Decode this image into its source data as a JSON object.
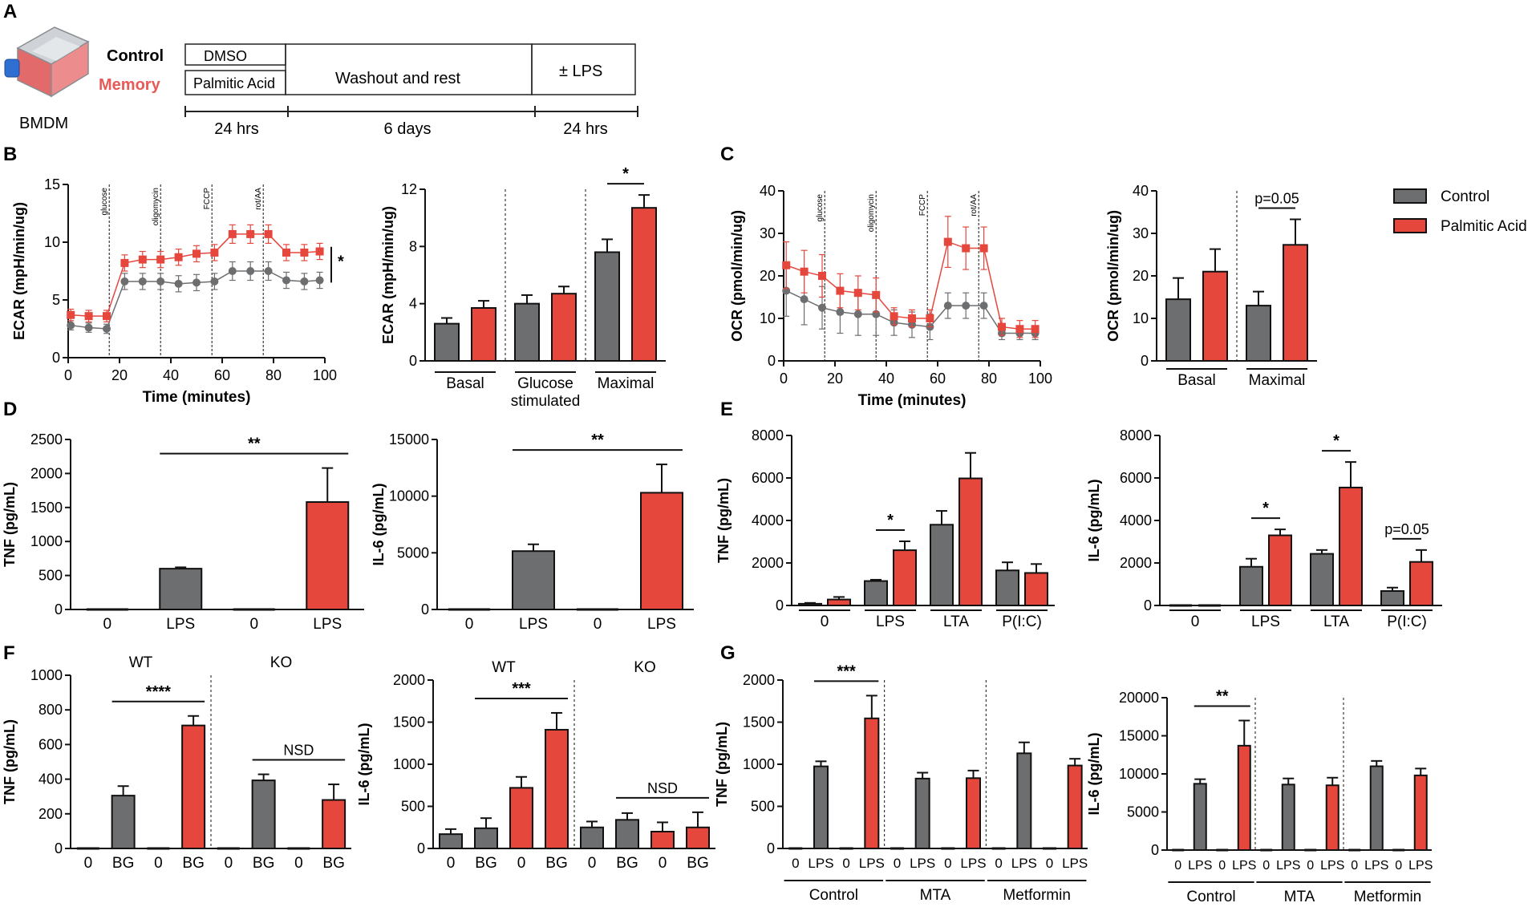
{
  "panel_labels": {
    "A": "A",
    "B": "B",
    "C": "C",
    "D": "D",
    "E": "E",
    "F": "F",
    "G": "G"
  },
  "colors": {
    "control": "#6d6e70",
    "palmitic": "#e5473d",
    "axis": "#111111"
  },
  "legend": {
    "control": "Control",
    "palmitic": "Palmitic Acid"
  },
  "schematic": {
    "cell_label": "BMDM",
    "group_control": "Control",
    "group_memory": "Memory",
    "box_dmso": "DMSO",
    "box_palmitic": "Palmitic Acid",
    "box_washout": "Washout and rest",
    "box_lps": "± LPS",
    "time_1": "24 hrs",
    "time_2": "6 days",
    "time_3": "24 hrs"
  },
  "chart_data": [
    {
      "id": "B1",
      "type": "line",
      "title": "",
      "xlabel": "Time (minutes)",
      "ylabel": "ECAR (mpH/min/ug)",
      "xlim": [
        0,
        100
      ],
      "ylim": [
        0,
        15
      ],
      "xticks": [
        0,
        20,
        40,
        60,
        80,
        100
      ],
      "yticks": [
        0,
        5,
        10,
        15
      ],
      "x": [
        1,
        8,
        15,
        22,
        29,
        36,
        43,
        50,
        57,
        64,
        71,
        78,
        85,
        92,
        98
      ],
      "injections": [
        {
          "x": 16,
          "label": "glucose"
        },
        {
          "x": 36,
          "label": "oligomycin"
        },
        {
          "x": 56,
          "label": "FCCP"
        },
        {
          "x": 76,
          "label": "rot/AA"
        }
      ],
      "series": [
        {
          "name": "Control",
          "values": [
            2.8,
            2.6,
            2.5,
            6.6,
            6.6,
            6.6,
            6.4,
            6.5,
            6.6,
            7.5,
            7.5,
            7.5,
            6.7,
            6.6,
            6.7
          ],
          "err": [
            0.4,
            0.4,
            0.4,
            0.7,
            0.7,
            0.7,
            0.7,
            0.7,
            0.7,
            0.8,
            0.8,
            0.8,
            0.7,
            0.7,
            0.7
          ]
        },
        {
          "name": "Palmitic Acid",
          "values": [
            3.7,
            3.6,
            3.6,
            8.2,
            8.5,
            8.5,
            8.7,
            9.0,
            9.1,
            10.7,
            10.7,
            10.7,
            9.1,
            9.1,
            9.2
          ],
          "err": [
            0.5,
            0.5,
            0.5,
            0.7,
            0.7,
            0.7,
            0.7,
            0.7,
            0.7,
            0.8,
            0.8,
            0.8,
            0.7,
            0.7,
            0.7
          ]
        }
      ],
      "significance": "*"
    },
    {
      "id": "B2",
      "type": "bar",
      "ylabel": "ECAR (mpH/min/ug)",
      "ylim": [
        0,
        12
      ],
      "yticks": [
        0,
        4,
        8,
        12
      ],
      "groups": [
        "Basal",
        "Glucose stimulated",
        "Maximal"
      ],
      "group_label_lines": [
        [
          "Basal"
        ],
        [
          "Glucose",
          "stimulated"
        ],
        [
          "Maximal"
        ]
      ],
      "series": [
        {
          "name": "Control",
          "values": [
            2.6,
            4.0,
            7.6
          ],
          "err": [
            0.4,
            0.6,
            0.9
          ]
        },
        {
          "name": "Palmitic Acid",
          "values": [
            3.7,
            4.7,
            10.7
          ],
          "err": [
            0.5,
            0.5,
            0.9
          ]
        }
      ],
      "significance": [
        {
          "group": 2,
          "label": "*"
        }
      ]
    },
    {
      "id": "C1",
      "type": "line",
      "title": "",
      "xlabel": "Time (minutes)",
      "ylabel": "OCR (pmol/min/ug)",
      "xlim": [
        0,
        100
      ],
      "ylim": [
        0,
        40
      ],
      "xticks": [
        0,
        20,
        40,
        60,
        80,
        100
      ],
      "yticks": [
        0,
        10,
        20,
        30,
        40
      ],
      "x": [
        1,
        8,
        15,
        22,
        29,
        36,
        43,
        50,
        57,
        64,
        71,
        78,
        85,
        92,
        98
      ],
      "injections": [
        {
          "x": 16,
          "label": "glucose"
        },
        {
          "x": 36,
          "label": "oligomycin"
        },
        {
          "x": 56,
          "label": "FCCP"
        },
        {
          "x": 76,
          "label": "rot/AA"
        }
      ],
      "series": [
        {
          "name": "Control",
          "values": [
            16.5,
            14.5,
            12.5,
            11.5,
            11.0,
            11.0,
            9.0,
            8.5,
            8.0,
            13.0,
            13.0,
            13.0,
            6.5,
            6.5,
            6.5
          ],
          "err": [
            6,
            6,
            5,
            5,
            5,
            5,
            3,
            3,
            3,
            3,
            3,
            3,
            1.5,
            1.5,
            1.5
          ]
        },
        {
          "name": "Palmitic Acid",
          "values": [
            22.5,
            21.0,
            20.0,
            16.5,
            16.0,
            15.5,
            10.5,
            10.0,
            10.0,
            28.0,
            26.5,
            26.5,
            8.0,
            7.5,
            7.5
          ],
          "err": [
            5.5,
            5,
            5,
            4,
            4,
            4,
            2,
            2,
            2,
            6,
            5,
            5,
            2,
            2,
            2
          ]
        }
      ]
    },
    {
      "id": "C2",
      "type": "bar",
      "ylabel": "OCR (pmol/min/ug)",
      "ylim": [
        0,
        40
      ],
      "yticks": [
        0,
        10,
        20,
        30,
        40
      ],
      "groups": [
        "Basal",
        "Maximal"
      ],
      "group_label_lines": [
        [
          "Basal"
        ],
        [
          "Maximal"
        ]
      ],
      "series": [
        {
          "name": "Control",
          "values": [
            14.5,
            13.0
          ],
          "err": [
            5.0,
            3.3
          ]
        },
        {
          "name": "Palmitic Acid",
          "values": [
            21.0,
            27.3
          ],
          "err": [
            5.3,
            6.0
          ]
        }
      ],
      "significance": [
        {
          "group": 1,
          "label": "p=0.05"
        }
      ]
    },
    {
      "id": "D1",
      "type": "bar",
      "ylabel": "TNF (pg/mL)",
      "ylim": [
        0,
        2500
      ],
      "yticks": [
        0,
        500,
        1000,
        1500,
        2000,
        2500
      ],
      "categories": [
        "0",
        "LPS",
        "0",
        "LPS"
      ],
      "bar_series": [
        "Control",
        "Control",
        "Palmitic Acid",
        "Palmitic Acid"
      ],
      "values": [
        0,
        600,
        0,
        1580
      ],
      "err": [
        0,
        20,
        0,
        500
      ],
      "significance": [
        {
          "from": 1,
          "to": 3,
          "label": "**"
        }
      ]
    },
    {
      "id": "D2",
      "type": "bar",
      "ylabel": "IL-6 (pg/mL)",
      "ylim": [
        0,
        15000
      ],
      "yticks": [
        0,
        5000,
        10000,
        15000
      ],
      "categories": [
        "0",
        "LPS",
        "0",
        "LPS"
      ],
      "bar_series": [
        "Control",
        "Control",
        "Palmitic Acid",
        "Palmitic Acid"
      ],
      "values": [
        0,
        5150,
        0,
        10300
      ],
      "err": [
        0,
        600,
        0,
        2500
      ],
      "significance": [
        {
          "from": 1,
          "to": 3,
          "label": "**"
        }
      ]
    },
    {
      "id": "E1",
      "type": "bar",
      "ylabel": "TNF (pg/mL)",
      "ylim": [
        0,
        8000
      ],
      "yticks": [
        0,
        2000,
        4000,
        6000,
        8000
      ],
      "groups": [
        "0",
        "LPS",
        "LTA",
        "P(I:C)"
      ],
      "series": [
        {
          "name": "Control",
          "values": [
            80,
            1150,
            3800,
            1650
          ],
          "err": [
            40,
            60,
            650,
            380
          ]
        },
        {
          "name": "Palmitic Acid",
          "values": [
            280,
            2600,
            5980,
            1530
          ],
          "err": [
            120,
            420,
            1200,
            420
          ]
        }
      ],
      "significance": [
        {
          "group": 1,
          "label": "*"
        }
      ]
    },
    {
      "id": "E2",
      "type": "bar",
      "ylabel": "IL-6 (pg/mL)",
      "ylim": [
        0,
        8000
      ],
      "yticks": [
        0,
        2000,
        4000,
        6000,
        8000
      ],
      "groups": [
        "0",
        "LPS",
        "LTA",
        "P(I:C)"
      ],
      "series": [
        {
          "name": "Control",
          "values": [
            0,
            1820,
            2430,
            680
          ],
          "err": [
            0,
            380,
            180,
            160
          ]
        },
        {
          "name": "Palmitic Acid",
          "values": [
            0,
            3300,
            5550,
            2050
          ],
          "err": [
            0,
            280,
            1200,
            560
          ]
        }
      ],
      "significance": [
        {
          "group": 1,
          "label": "*"
        },
        {
          "group": 2,
          "label": "*"
        },
        {
          "group": 3,
          "label": "p=0.05"
        }
      ]
    },
    {
      "id": "F1",
      "type": "bar",
      "ylabel": "TNF (pg/mL)",
      "ylim": [
        0,
        1000
      ],
      "yticks": [
        0,
        200,
        400,
        600,
        800,
        1000
      ],
      "sections": [
        "WT",
        "KO"
      ],
      "categories": [
        "0",
        "BG",
        "0",
        "BG",
        "0",
        "BG",
        "0",
        "BG"
      ],
      "bar_series": [
        "Control",
        "Control",
        "Palmitic Acid",
        "Palmitic Acid",
        "Control",
        "Control",
        "Palmitic Acid",
        "Palmitic Acid"
      ],
      "values": [
        0,
        305,
        0,
        710,
        0,
        393,
        0,
        280
      ],
      "err": [
        0,
        55,
        0,
        55,
        0,
        35,
        0,
        90
      ],
      "significance": [
        {
          "from": 1,
          "to": 3,
          "label": "****"
        },
        {
          "from": 5,
          "to": 7,
          "label": "NSD"
        }
      ]
    },
    {
      "id": "F2",
      "type": "bar",
      "ylabel": "IL-6 (pg/mL)",
      "ylim": [
        0,
        2000
      ],
      "yticks": [
        0,
        500,
        1000,
        1500,
        2000
      ],
      "sections": [
        "WT",
        "KO"
      ],
      "categories": [
        "0",
        "BG",
        "0",
        "BG",
        "0",
        "BG",
        "0",
        "BG"
      ],
      "bar_series": [
        "Control",
        "Control",
        "Palmitic Acid",
        "Palmitic Acid",
        "Control",
        "Control",
        "Palmitic Acid",
        "Palmitic Acid"
      ],
      "values": [
        170,
        240,
        720,
        1410,
        250,
        340,
        200,
        250
      ],
      "err": [
        60,
        120,
        130,
        200,
        70,
        80,
        110,
        180
      ],
      "significance": [
        {
          "from": 1,
          "to": 3,
          "label": "***"
        },
        {
          "from": 5,
          "to": 7,
          "label": "NSD"
        }
      ]
    },
    {
      "id": "G1",
      "type": "bar",
      "ylabel": "TNF (pg/mL)",
      "ylim": [
        0,
        2000
      ],
      "yticks": [
        0,
        500,
        1000,
        1500,
        2000
      ],
      "sections": [
        "Control",
        "MTA",
        "Metformin"
      ],
      "categories": [
        "0",
        "LPS",
        "0",
        "LPS",
        "0",
        "LPS",
        "0",
        "LPS",
        "0",
        "LPS",
        "0",
        "LPS"
      ],
      "bar_series": [
        "Control",
        "Control",
        "Palmitic Acid",
        "Palmitic Acid",
        "Control",
        "Control",
        "Palmitic Acid",
        "Palmitic Acid",
        "Control",
        "Control",
        "Palmitic Acid",
        "Palmitic Acid"
      ],
      "values": [
        0,
        975,
        0,
        1545,
        0,
        830,
        0,
        835,
        0,
        1130,
        0,
        985
      ],
      "err": [
        0,
        60,
        0,
        270,
        0,
        70,
        0,
        90,
        0,
        130,
        0,
        80
      ],
      "significance": [
        {
          "from": 1,
          "to": 3,
          "label": "***"
        }
      ]
    },
    {
      "id": "G2",
      "type": "bar",
      "ylabel": "IL-6 (pg/mL)",
      "ylim": [
        0,
        20000
      ],
      "yticks": [
        0,
        5000,
        10000,
        15000,
        20000
      ],
      "sections": [
        "Control",
        "MTA",
        "Metformin"
      ],
      "categories": [
        "0",
        "LPS",
        "0",
        "LPS",
        "0",
        "LPS",
        "0",
        "LPS",
        "0",
        "LPS",
        "0",
        "LPS"
      ],
      "bar_series": [
        "Control",
        "Control",
        "Palmitic Acid",
        "Palmitic Acid",
        "Control",
        "Control",
        "Palmitic Acid",
        "Palmitic Acid",
        "Control",
        "Control",
        "Palmitic Acid",
        "Palmitic Acid"
      ],
      "values": [
        0,
        8700,
        0,
        13700,
        0,
        8600,
        0,
        8500,
        0,
        11000,
        0,
        9800
      ],
      "err": [
        0,
        600,
        0,
        3300,
        0,
        800,
        0,
        1000,
        0,
        700,
        0,
        900
      ],
      "significance": [
        {
          "from": 1,
          "to": 3,
          "label": "**"
        }
      ]
    }
  ]
}
